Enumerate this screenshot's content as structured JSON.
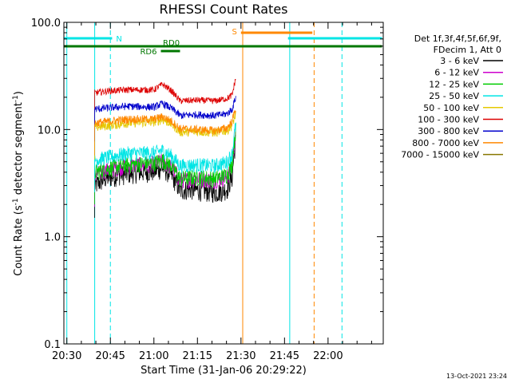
{
  "chart_data": {
    "type": "line",
    "title": "RHESSI Count Rates",
    "xlabel": "Start Time (31-Jan-06 20:29:22)",
    "ylabel_parts": [
      "Count Rate (s",
      "-1",
      " detector segment",
      "-1",
      ")"
    ],
    "yscale": "log",
    "ylim": [
      0.1,
      100.0
    ],
    "xlim_minutes": [
      20.483,
      22.317
    ],
    "x_ticks": [
      {
        "t": 20.5,
        "label": "20:30"
      },
      {
        "t": 20.75,
        "label": "20:45"
      },
      {
        "t": 21.0,
        "label": "21:00"
      },
      {
        "t": 21.25,
        "label": "21:15"
      },
      {
        "t": 21.5,
        "label": "21:30"
      },
      {
        "t": 21.75,
        "label": "21:45"
      },
      {
        "t": 22.0,
        "label": "22:00"
      }
    ],
    "y_ticks": [
      {
        "v": 0.1,
        "label": "0.1"
      },
      {
        "v": 1.0,
        "label": "1.0"
      },
      {
        "v": 10.0,
        "label": "10.0"
      },
      {
        "v": 100.0,
        "label": "100.0"
      }
    ],
    "legend_header": [
      "Det 1f,3f,4f,5f,6f,9f,",
      "FDecim 1, Att 0"
    ],
    "series": [
      {
        "name": "3 - 6 keV",
        "color": "#000000",
        "points": [
          [
            20.66,
            3.0
          ],
          [
            20.72,
            3.5
          ],
          [
            20.8,
            3.8
          ],
          [
            20.9,
            4.0
          ],
          [
            21.0,
            4.1
          ],
          [
            21.05,
            4.4
          ],
          [
            21.1,
            3.8
          ],
          [
            21.15,
            2.7
          ],
          [
            21.2,
            2.8
          ],
          [
            21.28,
            2.7
          ],
          [
            21.36,
            2.6
          ],
          [
            21.42,
            2.8
          ],
          [
            21.45,
            3.6
          ],
          [
            21.47,
            8.0
          ]
        ]
      },
      {
        "name": "6 - 12 keV",
        "color": "#cc00cc",
        "points": [
          [
            20.66,
            3.8
          ],
          [
            20.75,
            4.3
          ],
          [
            20.85,
            4.6
          ],
          [
            21.0,
            4.8
          ],
          [
            21.05,
            5.1
          ],
          [
            21.1,
            4.5
          ],
          [
            21.15,
            3.4
          ],
          [
            21.25,
            3.5
          ],
          [
            21.35,
            3.4
          ],
          [
            21.42,
            3.6
          ],
          [
            21.45,
            4.5
          ],
          [
            21.47,
            9.0
          ]
        ]
      },
      {
        "name": "12 - 25 keV",
        "color": "#00cc00",
        "points": [
          [
            20.66,
            4.0
          ],
          [
            20.75,
            4.4
          ],
          [
            20.85,
            4.7
          ],
          [
            21.0,
            4.9
          ],
          [
            21.05,
            5.2
          ],
          [
            21.1,
            4.6
          ],
          [
            21.15,
            3.5
          ],
          [
            21.25,
            3.6
          ],
          [
            21.35,
            3.5
          ],
          [
            21.42,
            3.8
          ],
          [
            21.45,
            4.8
          ],
          [
            21.47,
            10.0
          ]
        ]
      },
      {
        "name": "25 - 50 keV",
        "color": "#00e5e5",
        "points": [
          [
            20.66,
            5.2
          ],
          [
            20.75,
            5.6
          ],
          [
            20.85,
            6.0
          ],
          [
            21.0,
            6.1
          ],
          [
            21.05,
            6.4
          ],
          [
            21.1,
            5.7
          ],
          [
            21.15,
            4.6
          ],
          [
            21.25,
            4.7
          ],
          [
            21.35,
            4.6
          ],
          [
            21.42,
            5.0
          ],
          [
            21.45,
            6.0
          ],
          [
            21.47,
            11.0
          ]
        ]
      },
      {
        "name": "50 - 100 keV",
        "color": "#e5c800",
        "points": [
          [
            20.66,
            10.5
          ],
          [
            20.75,
            11.0
          ],
          [
            20.85,
            11.5
          ],
          [
            21.0,
            11.8
          ],
          [
            21.05,
            12.4
          ],
          [
            21.1,
            11.3
          ],
          [
            21.15,
            9.5
          ],
          [
            21.25,
            9.6
          ],
          [
            21.35,
            9.4
          ],
          [
            21.42,
            9.8
          ],
          [
            21.45,
            11.0
          ],
          [
            21.47,
            14.0
          ]
        ]
      },
      {
        "name": "100 - 300 keV",
        "color": "#dd0000",
        "points": [
          [
            20.66,
            22.0
          ],
          [
            20.75,
            23.0
          ],
          [
            20.85,
            23.5
          ],
          [
            21.0,
            23.5
          ],
          [
            21.05,
            26.5
          ],
          [
            21.1,
            23.0
          ],
          [
            21.15,
            18.5
          ],
          [
            21.25,
            18.8
          ],
          [
            21.35,
            18.5
          ],
          [
            21.42,
            19.5
          ],
          [
            21.45,
            21.0
          ],
          [
            21.47,
            30.0
          ]
        ]
      },
      {
        "name": "300 - 800 keV",
        "color": "#0000cc",
        "points": [
          [
            20.66,
            15.5
          ],
          [
            20.75,
            16.0
          ],
          [
            20.85,
            16.5
          ],
          [
            21.0,
            16.2
          ],
          [
            21.05,
            17.5
          ],
          [
            21.1,
            15.8
          ],
          [
            21.15,
            13.5
          ],
          [
            21.25,
            13.8
          ],
          [
            21.35,
            13.5
          ],
          [
            21.42,
            14.0
          ],
          [
            21.45,
            15.5
          ],
          [
            21.47,
            20.0
          ]
        ]
      },
      {
        "name": "800 - 7000 keV",
        "color": "#ff8800",
        "points": [
          [
            20.66,
            11.5
          ],
          [
            20.75,
            12.0
          ],
          [
            20.85,
            12.5
          ],
          [
            21.0,
            12.5
          ],
          [
            21.05,
            13.2
          ],
          [
            21.1,
            12.0
          ],
          [
            21.15,
            10.2
          ],
          [
            21.25,
            10.0
          ],
          [
            21.35,
            9.8
          ],
          [
            21.42,
            10.3
          ],
          [
            21.45,
            12.0
          ],
          [
            21.47,
            16.0
          ]
        ]
      },
      {
        "name": "7000 - 15000 keV",
        "color": "#887700",
        "points": []
      }
    ],
    "annotations": [
      {
        "label": "N",
        "kind": "cyan-bar",
        "color": "#00e5e5",
        "t0": 20.483,
        "t1": 20.76
      },
      {
        "label": "",
        "kind": "cyan-bar",
        "color": "#00e5e5",
        "t0": 21.77,
        "t1": 22.31
      },
      {
        "label": "S",
        "kind": "orange-bar",
        "color": "#ff8800",
        "t0": 21.5,
        "t1": 21.91
      },
      {
        "label": "RD6",
        "kind": "green-bar",
        "color": "#007700",
        "t0": 21.04,
        "t1": 21.15
      },
      {
        "label": "RD0",
        "kind": "green-bar",
        "color": "#007700",
        "t0": 20.483,
        "t1": 22.31
      }
    ],
    "vlines": [
      {
        "t": 20.5,
        "color": "#00e5e5",
        "style": "solid"
      },
      {
        "t": 20.66,
        "color": "#00e5e5",
        "style": "solid"
      },
      {
        "t": 20.75,
        "color": "#00e5e5",
        "style": "dashed"
      },
      {
        "t": 21.51,
        "color": "#ff8800",
        "style": "solid"
      },
      {
        "t": 21.78,
        "color": "#00e5e5",
        "style": "solid"
      },
      {
        "t": 21.92,
        "color": "#ff8800",
        "style": "dashed"
      },
      {
        "t": 22.08,
        "color": "#00e5e5",
        "style": "dashed"
      }
    ],
    "timestamp": "13-Oct-2021 23:24"
  }
}
